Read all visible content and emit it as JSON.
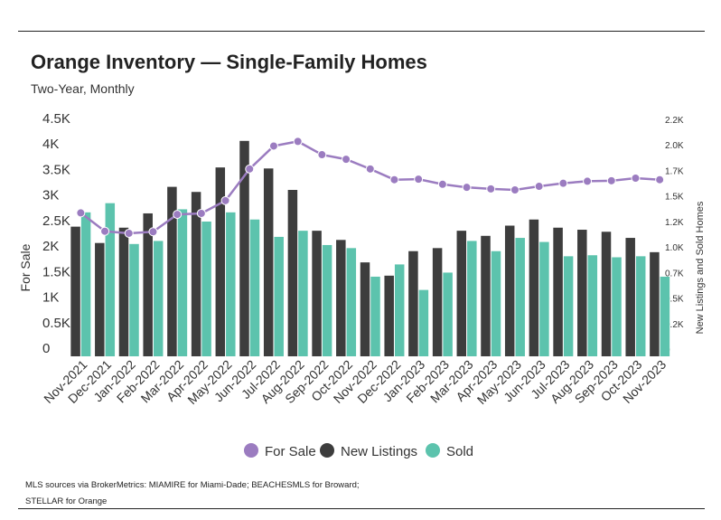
{
  "title": "Orange Inventory — Single-Family Homes",
  "subtitle": "Two-Year, Monthly",
  "footer": {
    "line1": "MLS sources via BrokerMetrics: MIAMIRE for Miami-Dade; BEACHESMLS for Broward;",
    "line2": "STELLAR for Orange"
  },
  "colors": {
    "for_sale": "#9b7cc0",
    "new_listings": "#3d3d3d",
    "sold": "#5cc3ad"
  },
  "chart_data": {
    "type": "bar",
    "categories": [
      "Nov-2021",
      "Dec-2021",
      "Jan-2022",
      "Feb-2022",
      "Mar-2022",
      "Apr-2022",
      "May-2022",
      "Jun-2022",
      "Jul-2022",
      "Aug-2022",
      "Sep-2022",
      "Oct-2022",
      "Nov-2022",
      "Dec-2022",
      "Jan-2023",
      "Feb-2023",
      "Mar-2023",
      "Apr-2023",
      "May-2023",
      "Jun-2023",
      "Jul-2023",
      "Aug-2023",
      "Sep-2023",
      "Oct-2023",
      "Nov-2023"
    ],
    "ylabel_left": "For Sale",
    "ylabel_right": "New Listings and Sold Homes",
    "left_ticks": [
      "0",
      "0.5K",
      "1K",
      "1.5K",
      "2K",
      "2.5K",
      "3K",
      "3.5K",
      "4K",
      "4.5K"
    ],
    "right_ticks": [
      "0",
      "0.2K",
      "0.5K",
      "0.7K",
      "1.0K",
      "1.2K",
      "1.5K",
      "1.7K",
      "2.0K",
      "2.2K"
    ],
    "ylim_left": [
      0,
      4500
    ],
    "ylim_right": [
      0,
      2250
    ],
    "legend_position": "bottom",
    "grid": false,
    "series": [
      {
        "name": "For Sale",
        "type": "line",
        "axis": "left",
        "values": [
          2810,
          2450,
          2410,
          2440,
          2780,
          2800,
          3050,
          3670,
          4120,
          4210,
          3950,
          3860,
          3670,
          3460,
          3470,
          3370,
          3310,
          3280,
          3260,
          3330,
          3390,
          3430,
          3440,
          3490,
          3460
        ]
      },
      {
        "name": "New Listings",
        "type": "bar",
        "axis": "right",
        "values": [
          1270,
          1110,
          1260,
          1400,
          1660,
          1610,
          1850,
          2110,
          1840,
          1630,
          1230,
          1140,
          920,
          790,
          1030,
          1060,
          1230,
          1180,
          1280,
          1340,
          1260,
          1240,
          1220,
          1160,
          1020
        ]
      },
      {
        "name": "Sold",
        "type": "bar",
        "axis": "right",
        "values": [
          1410,
          1500,
          1100,
          1130,
          1440,
          1320,
          1410,
          1340,
          1170,
          1230,
          1090,
          1060,
          780,
          900,
          650,
          820,
          1130,
          1030,
          1160,
          1120,
          980,
          990,
          970,
          980,
          780
        ]
      }
    ]
  }
}
